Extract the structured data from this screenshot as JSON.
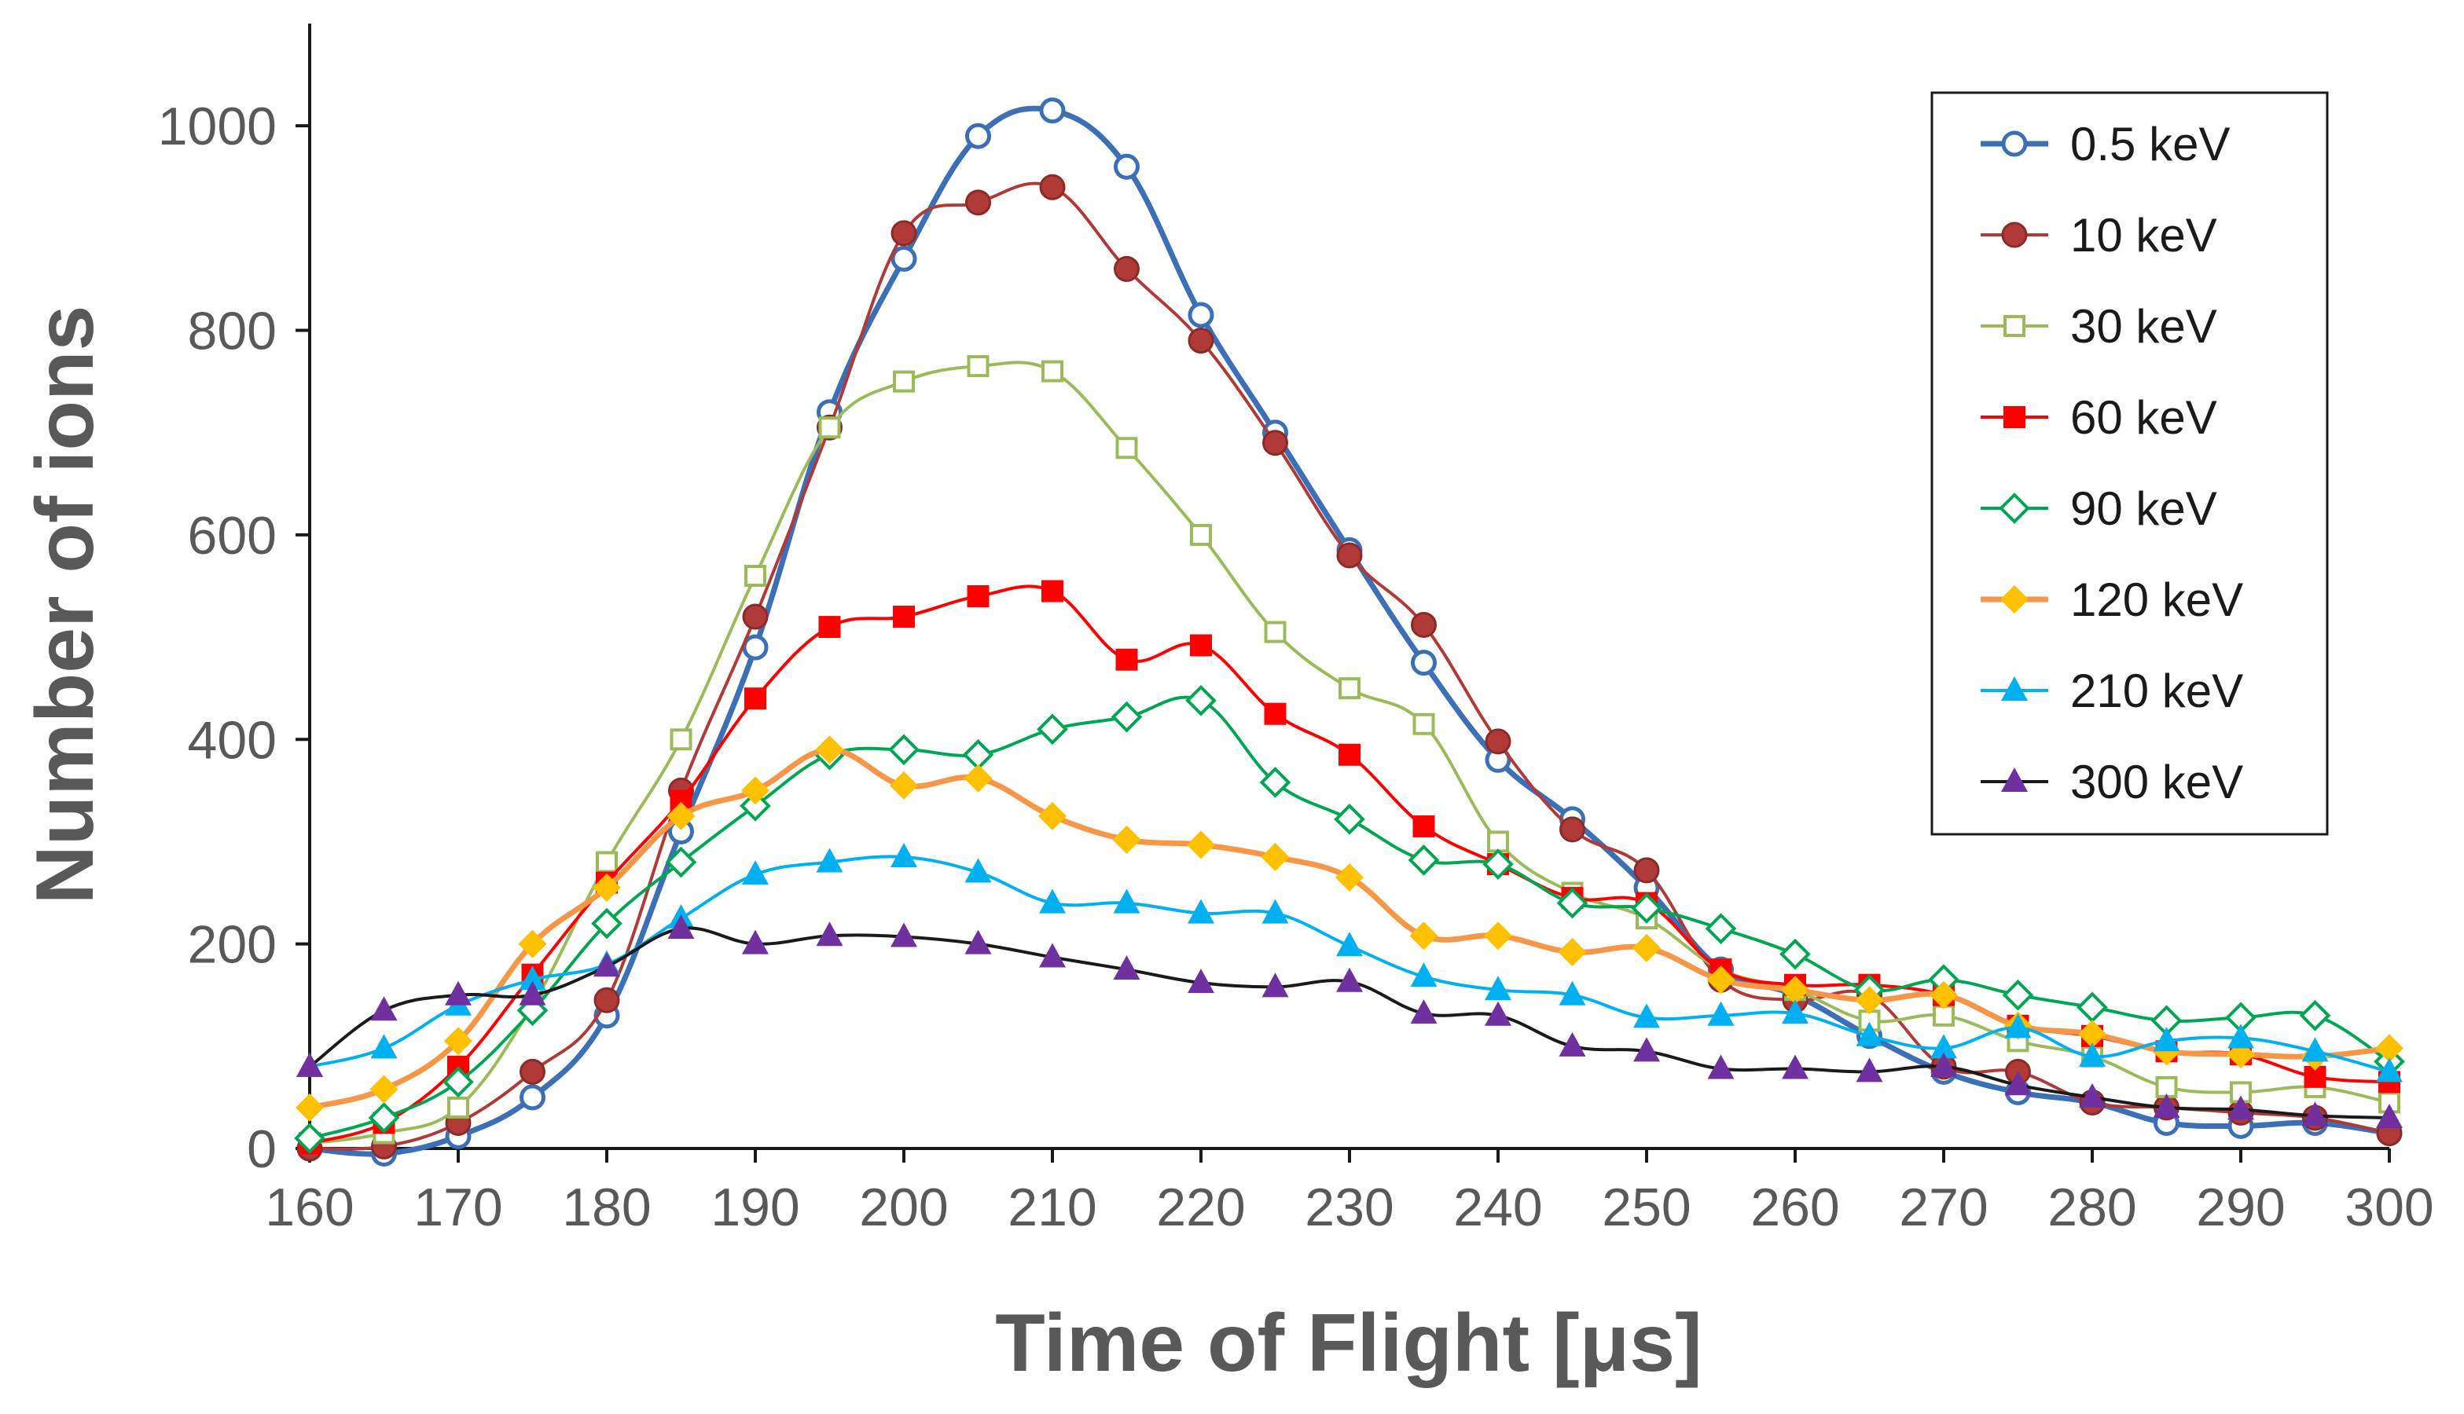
{
  "chart_data": {
    "type": "line",
    "title": "",
    "xlabel": "Time of Flight  [μs]",
    "ylabel": "Number of ions",
    "xlim": [
      160,
      300
    ],
    "ylim": [
      0,
      1100
    ],
    "xticks": [
      160,
      170,
      180,
      190,
      200,
      210,
      220,
      230,
      240,
      250,
      260,
      270,
      280,
      290,
      300
    ],
    "xtick_labels": [
      "160",
      "170",
      "180",
      "190",
      "200",
      "210",
      "220",
      "230",
      "240",
      "250",
      "260",
      "270",
      "280",
      "290",
      "300"
    ],
    "yticks": [
      0,
      200,
      400,
      600,
      800,
      1000
    ],
    "ytick_labels": [
      "0",
      "200",
      "400",
      "600",
      "800",
      "1000"
    ],
    "grid": false,
    "legend_position": "top-right",
    "x": [
      160,
      165,
      170,
      175,
      180,
      185,
      190,
      195,
      200,
      205,
      210,
      215,
      220,
      225,
      230,
      235,
      240,
      245,
      250,
      255,
      260,
      265,
      270,
      275,
      280,
      285,
      290,
      295,
      300
    ],
    "series": [
      {
        "name": "0.5  keV",
        "color": "#3b6fb6",
        "marker": "circle-open",
        "values": [
          0,
          -5,
          12,
          50,
          130,
          310,
          490,
          720,
          870,
          990,
          1015,
          960,
          815,
          700,
          585,
          475,
          380,
          322,
          255,
          175,
          150,
          110,
          75,
          55,
          45,
          25,
          22,
          25,
          15
        ]
      },
      {
        "name": "10 keV",
        "color": "#b03a37",
        "marker": "circle-filled",
        "values": [
          0,
          2,
          25,
          75,
          145,
          350,
          520,
          705,
          895,
          925,
          940,
          860,
          790,
          690,
          580,
          512,
          398,
          312,
          272,
          165,
          145,
          150,
          80,
          75,
          45,
          40,
          35,
          30,
          15
        ]
      },
      {
        "name": "30 keV",
        "color": "#9bbb59",
        "marker": "square-open",
        "values": [
          5,
          15,
          40,
          140,
          280,
          400,
          560,
          705,
          750,
          765,
          760,
          685,
          600,
          505,
          450,
          415,
          300,
          250,
          225,
          175,
          155,
          125,
          130,
          105,
          90,
          60,
          55,
          60,
          45
        ]
      },
      {
        "name": "60 keV",
        "color": "#ff0000",
        "marker": "square-filled",
        "values": [
          5,
          25,
          80,
          170,
          260,
          340,
          440,
          510,
          520,
          540,
          545,
          478,
          492,
          425,
          385,
          315,
          278,
          245,
          240,
          175,
          160,
          160,
          150,
          120,
          110,
          95,
          92,
          70,
          65
        ]
      },
      {
        "name": "90 keV",
        "color": "#00a651",
        "marker": "diamond-open",
        "values": [
          10,
          30,
          65,
          135,
          220,
          280,
          335,
          385,
          390,
          385,
          410,
          422,
          438,
          358,
          322,
          282,
          278,
          240,
          235,
          215,
          190,
          155,
          165,
          150,
          138,
          125,
          128,
          130,
          85
        ]
      },
      {
        "name": "120 keV",
        "color": "#ffc000",
        "line_color": "#f79646",
        "marker": "diamond-filled",
        "values": [
          40,
          58,
          105,
          200,
          255,
          325,
          350,
          390,
          355,
          362,
          325,
          302,
          297,
          285,
          265,
          208,
          208,
          192,
          196,
          165,
          155,
          145,
          150,
          120,
          112,
          95,
          92,
          90,
          98
        ]
      },
      {
        "name": "210 keV",
        "color": "#00b0f0",
        "marker": "triangle",
        "values": [
          80,
          98,
          140,
          165,
          180,
          225,
          268,
          280,
          285,
          270,
          240,
          240,
          230,
          230,
          198,
          168,
          155,
          150,
          128,
          130,
          132,
          110,
          98,
          118,
          90,
          105,
          108,
          95,
          75
        ]
      },
      {
        "name": "300 keV",
        "color": "#7030a0",
        "line_color": "#1a1a1a",
        "marker": "triangle",
        "values": [
          80,
          135,
          150,
          150,
          178,
          215,
          200,
          208,
          207,
          200,
          187,
          175,
          162,
          158,
          163,
          132,
          130,
          100,
          95,
          78,
          78,
          75,
          80,
          62,
          50,
          40,
          38,
          32,
          30
        ]
      }
    ]
  }
}
